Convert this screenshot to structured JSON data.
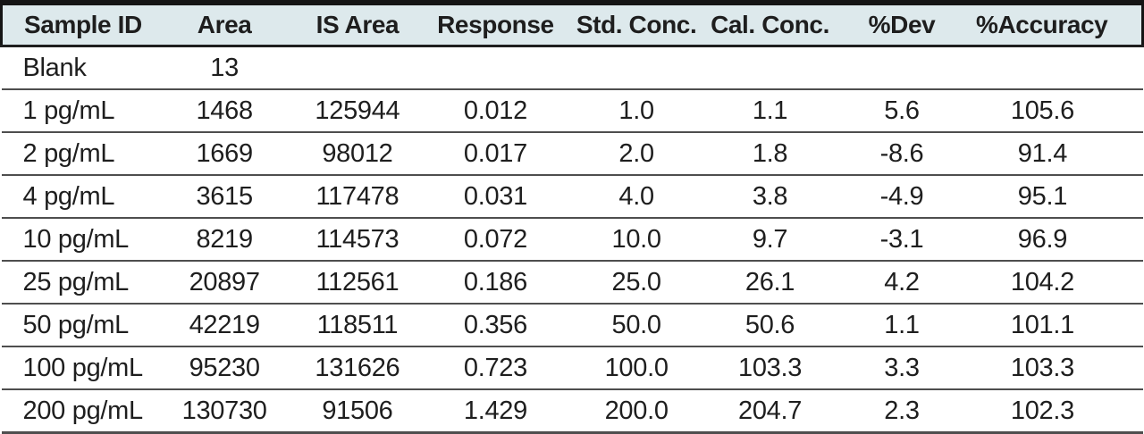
{
  "colors": {
    "header_bg": "#dde9ec",
    "top_border": "#151515",
    "header_underline": "#1f1f1f",
    "row_divider": "#4e4e4e",
    "text": "#1e1e1e",
    "body_bg": "#ffffff"
  },
  "chart_data": {
    "type": "table",
    "title": "",
    "columns": [
      "Sample ID",
      "Area",
      "IS Area",
      "Response",
      "Std. Conc.",
      "Cal. Conc.",
      "%Dev",
      "%Accuracy"
    ],
    "rows": [
      [
        "Blank",
        "13",
        "",
        "",
        "",
        "",
        "",
        ""
      ],
      [
        "1 pg/mL",
        "1468",
        "125944",
        "0.012",
        "1.0",
        "1.1",
        "5.6",
        "105.6"
      ],
      [
        "2 pg/mL",
        "1669",
        "98012",
        "0.017",
        "2.0",
        "1.8",
        "-8.6",
        "91.4"
      ],
      [
        "4 pg/mL",
        "3615",
        "117478",
        "0.031",
        "4.0",
        "3.8",
        "-4.9",
        "95.1"
      ],
      [
        "10 pg/mL",
        "8219",
        "114573",
        "0.072",
        "10.0",
        "9.7",
        "-3.1",
        "96.9"
      ],
      [
        "25 pg/mL",
        "20897",
        "112561",
        "0.186",
        "25.0",
        "26.1",
        "4.2",
        "104.2"
      ],
      [
        "50 pg/mL",
        "42219",
        "118511",
        "0.356",
        "50.0",
        "50.6",
        "1.1",
        "101.1"
      ],
      [
        "100 pg/mL",
        "95230",
        "131626",
        "0.723",
        "100.0",
        "103.3",
        "3.3",
        "103.3"
      ],
      [
        "200 pg/mL",
        "130730",
        "91506",
        "1.429",
        "200.0",
        "204.7",
        "2.3",
        "102.3"
      ]
    ]
  }
}
